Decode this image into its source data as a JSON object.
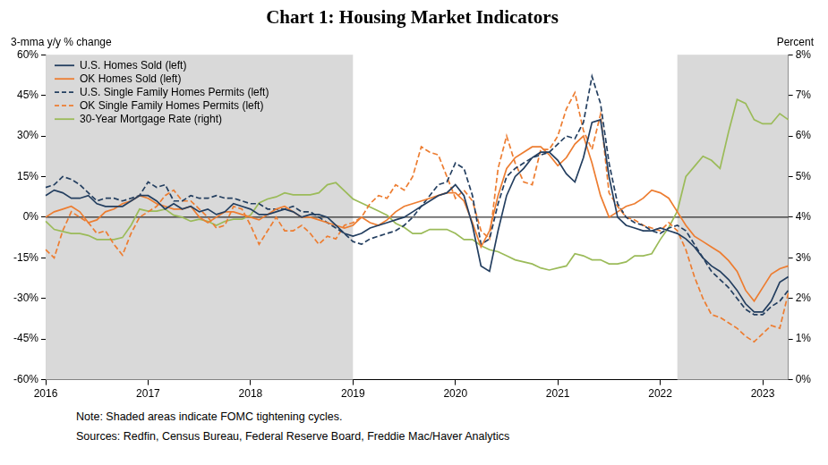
{
  "chart_data": {
    "type": "line",
    "title": "Chart 1: Housing Market Indicators",
    "y_label": "3-mma y/y % change",
    "y2_label": "Percent",
    "note": "Note: Shaded areas indicate FOMC tightening cycles.",
    "sources": "Sources: Redfin, Census Bureau, Federal Reserve Board, Freddie Mac/Haver Analytics",
    "categories": [
      "2016",
      null,
      null,
      null,
      null,
      null,
      null,
      null,
      null,
      null,
      null,
      null,
      "2017",
      null,
      null,
      null,
      null,
      null,
      null,
      null,
      null,
      null,
      null,
      null,
      "2018",
      null,
      null,
      null,
      null,
      null,
      null,
      null,
      null,
      null,
      null,
      null,
      "2019",
      null,
      null,
      null,
      null,
      null,
      null,
      null,
      null,
      null,
      null,
      null,
      "2020",
      null,
      null,
      null,
      null,
      null,
      null,
      null,
      null,
      null,
      null,
      null,
      "2021",
      null,
      null,
      null,
      null,
      null,
      null,
      null,
      null,
      null,
      null,
      null,
      "2022",
      null,
      null,
      null,
      null,
      null,
      null,
      null,
      null,
      null,
      null,
      null,
      "2023",
      null,
      null,
      null
    ],
    "series": [
      {
        "name": "U.S. Homes Sold (left)",
        "color": "#243f60",
        "line_style": "solid",
        "axis": "y",
        "values": [
          8,
          10,
          9,
          7,
          7,
          8,
          5,
          4,
          4,
          4,
          6,
          8,
          8,
          6,
          3,
          5,
          3,
          4,
          2,
          3,
          1,
          2,
          5,
          4,
          3,
          1,
          1,
          2,
          3,
          2,
          0,
          1,
          1,
          0,
          -3,
          -6,
          -7,
          -6,
          -4,
          -3,
          -2,
          -1,
          0,
          2,
          4,
          6,
          8,
          9,
          12,
          8,
          -3,
          -18,
          -20,
          -5,
          8,
          15,
          18,
          22,
          24,
          24,
          21,
          16,
          13,
          22,
          35,
          36,
          15,
          0,
          -3,
          -4,
          -5,
          -5,
          -4,
          -5,
          -6,
          -8,
          -11,
          -15,
          -18,
          -20,
          -23,
          -27,
          -32,
          -35,
          -35,
          -31,
          -24,
          -22
        ]
      },
      {
        "name": "OK Homes Sold (left)",
        "color": "#ed7d31",
        "line_style": "solid",
        "axis": "y",
        "values": [
          0,
          2,
          3,
          4,
          2,
          -2,
          -1,
          2,
          3,
          5,
          6,
          8,
          7,
          5,
          4,
          3,
          3,
          4,
          0,
          -2,
          0,
          2,
          2,
          1,
          0,
          -1,
          1,
          3,
          4,
          2,
          0,
          0,
          -1,
          -2,
          -3,
          -4,
          -3,
          0,
          -2,
          -3,
          -1,
          2,
          4,
          5,
          6,
          7,
          8,
          9,
          9,
          6,
          -2,
          -11,
          -5,
          8,
          18,
          22,
          24,
          26,
          26,
          23,
          19,
          22,
          27,
          30,
          20,
          8,
          0,
          2,
          4,
          5,
          7,
          10,
          9,
          7,
          2,
          -3,
          -7,
          -9,
          -11,
          -13,
          -16,
          -20,
          -27,
          -31,
          -26,
          -21,
          -19,
          -18
        ]
      },
      {
        "name": "U.S. Single Family Homes Permits (left)",
        "color": "#243f60",
        "line_style": "dashed",
        "axis": "y",
        "values": [
          11,
          12,
          15,
          14,
          12,
          9,
          6,
          7,
          7,
          6,
          7,
          8,
          13,
          11,
          12,
          6,
          6,
          8,
          7,
          7,
          8,
          7,
          7,
          6,
          5,
          5,
          3,
          3,
          3,
          4,
          2,
          2,
          0,
          -2,
          -4,
          -6,
          -9,
          -10,
          -8,
          -7,
          -6,
          -5,
          -3,
          0,
          4,
          8,
          12,
          13,
          20,
          18,
          8,
          -10,
          -8,
          5,
          15,
          18,
          20,
          22,
          23,
          24,
          27,
          30,
          29,
          35,
          52,
          42,
          20,
          5,
          0,
          -2,
          -3,
          -5,
          -6,
          -4,
          -3,
          -5,
          -10,
          -15,
          -20,
          -23,
          -26,
          -30,
          -34,
          -36,
          -36,
          -33,
          -31,
          -27
        ]
      },
      {
        "name": "OK Single Family Homes Permits (left)",
        "color": "#ed7d31",
        "line_style": "dashed",
        "axis": "y",
        "values": [
          -12,
          -15,
          -5,
          2,
          0,
          -2,
          -6,
          -5,
          -10,
          -14,
          -6,
          0,
          2,
          4,
          8,
          10,
          6,
          6,
          3,
          0,
          -4,
          -3,
          4,
          3,
          -3,
          -10,
          -5,
          0,
          -5,
          -5,
          -3,
          -6,
          -10,
          -7,
          -8,
          -3,
          -2,
          0,
          5,
          8,
          7,
          12,
          10,
          15,
          26,
          24,
          23,
          15,
          7,
          10,
          6,
          -5,
          -8,
          18,
          30,
          20,
          13,
          12,
          25,
          25,
          30,
          40,
          46,
          32,
          25,
          38,
          9,
          4,
          0,
          -1,
          -3,
          -4,
          -5,
          -2,
          -5,
          -12,
          -22,
          -30,
          -36,
          -37,
          -39,
          -41,
          -44,
          -46,
          -43,
          -40,
          -41,
          -28
        ]
      },
      {
        "name": "30-Year Mortgage Rate (right)",
        "color": "#9bbb59",
        "line_style": "solid",
        "axis": "y2",
        "values": [
          3.9,
          3.7,
          3.65,
          3.6,
          3.6,
          3.55,
          3.45,
          3.45,
          3.45,
          3.5,
          3.8,
          4.2,
          4.15,
          4.15,
          4.2,
          4.05,
          4.0,
          3.9,
          3.95,
          3.9,
          3.8,
          3.9,
          3.95,
          3.95,
          4.05,
          4.35,
          4.45,
          4.5,
          4.6,
          4.55,
          4.55,
          4.55,
          4.6,
          4.8,
          4.85,
          4.65,
          4.45,
          4.35,
          4.25,
          4.15,
          4.05,
          3.85,
          3.75,
          3.6,
          3.6,
          3.7,
          3.7,
          3.7,
          3.6,
          3.45,
          3.45,
          3.3,
          3.2,
          3.15,
          3.05,
          2.95,
          2.9,
          2.85,
          2.75,
          2.7,
          2.75,
          2.8,
          3.1,
          3.05,
          2.95,
          2.95,
          2.85,
          2.85,
          2.9,
          3.05,
          3.05,
          3.1,
          3.45,
          3.75,
          4.15,
          5.0,
          5.25,
          5.5,
          5.4,
          5.2,
          6.1,
          6.9,
          6.8,
          6.4,
          6.3,
          6.3,
          6.55,
          6.4
        ]
      }
    ],
    "ylim": [
      -60,
      60
    ],
    "yticks": [
      {
        "value": -60,
        "label": "-60%"
      },
      {
        "value": -45,
        "label": "-45%"
      },
      {
        "value": -30,
        "label": "-30%"
      },
      {
        "value": -15,
        "label": "-15%"
      },
      {
        "value": 0,
        "label": "0%"
      },
      {
        "value": 15,
        "label": "15%"
      },
      {
        "value": 30,
        "label": "30%"
      },
      {
        "value": 45,
        "label": "45%"
      },
      {
        "value": 60,
        "label": "60%"
      }
    ],
    "y2lim": [
      0,
      8
    ],
    "y2ticks": [
      {
        "value": 0,
        "label": "0%"
      },
      {
        "value": 1,
        "label": "1%"
      },
      {
        "value": 2,
        "label": "2%"
      },
      {
        "value": 3,
        "label": "3%"
      },
      {
        "value": 4,
        "label": "4%"
      },
      {
        "value": 5,
        "label": "5%"
      },
      {
        "value": 6,
        "label": "6%"
      },
      {
        "value": 7,
        "label": "7%"
      },
      {
        "value": 8,
        "label": "8%"
      }
    ],
    "baseline": 0,
    "shaded_periods": [
      {
        "from": 0,
        "to": 36
      },
      {
        "from": 74,
        "to": 87
      }
    ],
    "grid": false,
    "legend": "upper left"
  }
}
